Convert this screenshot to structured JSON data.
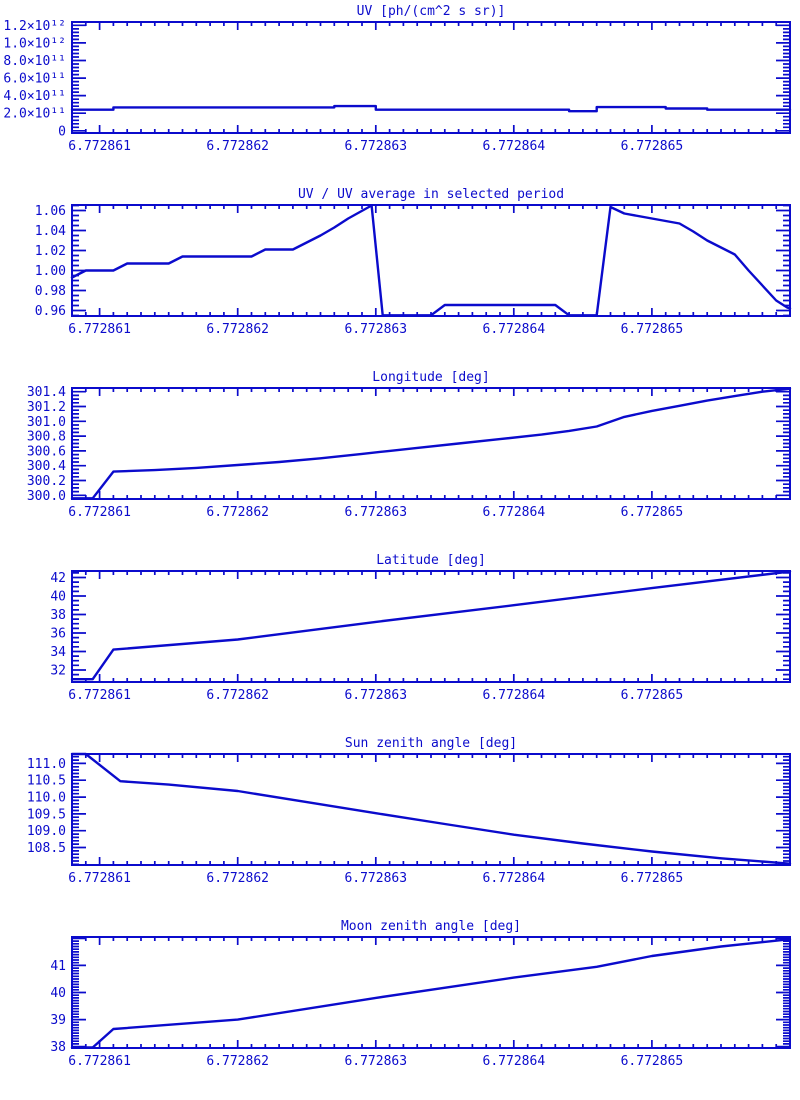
{
  "page": {
    "background": "#ffffff",
    "accent_color": "#0b0bcc"
  },
  "x_axis": {
    "xlim": [
      6.7728608,
      6.772866
    ],
    "major_ticks": [
      6.772861,
      6.772862,
      6.772863,
      6.772864,
      6.772865
    ],
    "major_labels": [
      "6.772861",
      "6.772862",
      "6.772863",
      "6.772864",
      "6.772865"
    ],
    "minor_step": 1e-07,
    "grid": false
  },
  "chart_data": [
    {
      "id": "uv",
      "type": "line",
      "title": "UV [ph/(cm^2 s sr)]",
      "ylim": [
        -25000000000.0,
        1238000000000.0
      ],
      "yticks": [
        0,
        200000000000.0,
        400000000000.0,
        600000000000.0,
        800000000000.0,
        1000000000000.0,
        1200000000000.0
      ],
      "ytick_labels": [
        "0",
        "2.0×10¹¹",
        "4.0×10¹¹",
        "6.0×10¹¹",
        "8.0×10¹¹",
        "1.0×10¹²",
        "1.2×10¹²"
      ],
      "y_minor_step": 40000000000.0,
      "x": [
        6.7728608,
        6.7728611,
        6.7728611,
        6.7728627,
        6.7728627,
        6.772863,
        6.772863,
        6.7728644,
        6.7728644,
        6.7728646,
        6.7728646,
        6.7728651,
        6.7728651,
        6.7728654,
        6.7728654,
        6.772866
      ],
      "y": [
        240000000000.0,
        240000000000.0,
        266000000000.0,
        266000000000.0,
        281000000000.0,
        281000000000.0,
        240000000000.0,
        240000000000.0,
        223000000000.0,
        223000000000.0,
        270000000000.0,
        270000000000.0,
        254000000000.0,
        254000000000.0,
        240000000000.0,
        240000000000.0
      ]
    },
    {
      "id": "uv-ratio",
      "type": "line",
      "title": "UV / UV average in selected period",
      "ylim": [
        0.9545,
        1.0655
      ],
      "yticks": [
        0.96,
        0.98,
        1.0,
        1.02,
        1.04,
        1.06
      ],
      "ytick_labels": [
        "0.96",
        "0.98",
        "1.00",
        "1.02",
        "1.04",
        "1.06"
      ],
      "y_minor_step": 0.005,
      "x": [
        6.7728608,
        6.7728609,
        6.7728611,
        6.7728612,
        6.7728615,
        6.7728616,
        6.7728621,
        6.7728622,
        6.7728624,
        6.7728626,
        6.7728627,
        6.7728628,
        6.77286297,
        6.77286305,
        6.7728634,
        6.7728635,
        6.7728643,
        6.7728644,
        6.7728646,
        6.7728647,
        6.7728648,
        6.772865,
        6.7728652,
        6.7728653,
        6.7728654,
        6.7728656,
        6.7728657,
        6.7728658,
        6.7728659,
        6.77286598,
        6.772866
      ],
      "y": [
        0.993,
        1.0,
        1.0,
        1.007,
        1.007,
        1.014,
        1.014,
        1.021,
        1.021,
        1.035,
        1.043,
        1.052,
        1.065,
        0.9552,
        0.9552,
        0.9655,
        0.9655,
        0.9552,
        0.9552,
        1.0635,
        1.057,
        1.052,
        1.047,
        1.039,
        1.03,
        1.016,
        1.0,
        0.985,
        0.97,
        0.963,
        0.962
      ]
    },
    {
      "id": "longitude",
      "type": "line",
      "title": "Longitude [deg]",
      "ylim": [
        299.95,
        301.45
      ],
      "yticks": [
        300.0,
        300.2,
        300.4,
        300.6,
        300.8,
        301.0,
        301.2,
        301.4
      ],
      "ytick_labels": [
        "300.0",
        "300.2",
        "300.4",
        "300.6",
        "300.8",
        "301.0",
        "301.2",
        "301.4"
      ],
      "y_minor_step": 0.05,
      "x": [
        6.7728608,
        6.77286095,
        6.7728611,
        6.7728614,
        6.7728617,
        6.772862,
        6.7728623,
        6.7728626,
        6.7728629,
        6.7728631,
        6.7728633,
        6.7728636,
        6.7728639,
        6.7728642,
        6.7728644,
        6.7728646,
        6.7728648,
        6.772865,
        6.7728652,
        6.7728654,
        6.7728656,
        6.7728658,
        6.772866
      ],
      "y": [
        299.96,
        299.96,
        300.32,
        300.34,
        300.37,
        300.41,
        300.45,
        300.5,
        300.56,
        300.6,
        300.64,
        300.7,
        300.76,
        300.82,
        300.87,
        300.93,
        301.06,
        301.14,
        301.21,
        301.28,
        301.34,
        301.4,
        301.44
      ]
    },
    {
      "id": "latitude",
      "type": "line",
      "title": "Latitude [deg]",
      "ylim": [
        30.7,
        42.7
      ],
      "yticks": [
        32,
        34,
        36,
        38,
        40,
        42
      ],
      "ytick_labels": [
        "32",
        "34",
        "36",
        "38",
        "40",
        "42"
      ],
      "y_minor_step": 0.5,
      "x": [
        6.7728608,
        6.77286095,
        6.7728611,
        6.772862,
        6.772863,
        6.772864,
        6.772865,
        6.772866
      ],
      "y": [
        31.0,
        31.0,
        34.2,
        35.3,
        37.2,
        39.0,
        40.85,
        42.65
      ]
    },
    {
      "id": "sun-zenith",
      "type": "line",
      "title": "Sun zenith angle [deg]",
      "ylim": [
        107.98,
        111.28
      ],
      "yticks": [
        108.5,
        109.0,
        109.5,
        110.0,
        110.5,
        111.0
      ],
      "ytick_labels": [
        "108.5",
        "109.0",
        "109.5",
        "110.0",
        "110.5",
        "111.0"
      ],
      "y_minor_step": 0.1,
      "x": [
        6.7728608,
        6.7728609,
        6.77286115,
        6.7728615,
        6.772862,
        6.7728625,
        6.772863,
        6.7728635,
        6.772864,
        6.7728645,
        6.772865,
        6.7728655,
        6.772866
      ],
      "y": [
        111.28,
        111.28,
        110.47,
        110.37,
        110.18,
        109.85,
        109.52,
        109.2,
        108.88,
        108.62,
        108.38,
        108.18,
        108.02
      ]
    },
    {
      "id": "moon-zenith",
      "type": "line",
      "title": "Moon zenith angle [deg]",
      "ylim": [
        37.95,
        42.05
      ],
      "yticks": [
        38,
        39,
        40,
        41,
        42
      ],
      "ytick_labels": [
        "38",
        "39",
        "40",
        "41",
        ""
      ],
      "y_minor_step": 0.1,
      "x": [
        6.7728608,
        6.77286095,
        6.7728611,
        6.772862,
        6.772863,
        6.772864,
        6.7728646,
        6.772865,
        6.7728655,
        6.772866
      ],
      "y": [
        37.97,
        37.97,
        38.65,
        39.0,
        39.8,
        40.55,
        40.95,
        41.35,
        41.7,
        41.97
      ]
    }
  ]
}
